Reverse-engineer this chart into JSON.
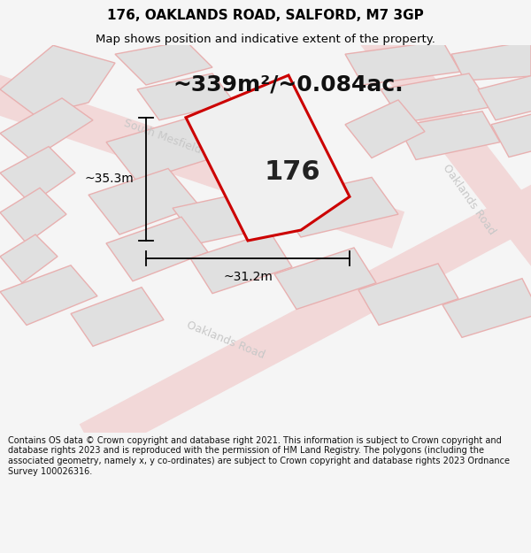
{
  "title": "176, OAKLANDS ROAD, SALFORD, M7 3GP",
  "subtitle": "Map shows position and indicative extent of the property.",
  "area_label": "~339m²/~0.084ac.",
  "number_label": "176",
  "dim_h": "~35.3m",
  "dim_w": "~31.2m",
  "footer": "Contains OS data © Crown copyright and database right 2021. This information is subject to Crown copyright and database rights 2023 and is reproduced with the permission of HM Land Registry. The polygons (including the associated geometry, namely x, y co-ordinates) are subject to Crown copyright and database rights 2023 Ordnance Survey 100026316.",
  "bg_color": "#f5f5f5",
  "map_bg": "#ffffff",
  "plot_edge": "#cc0000",
  "title_color": "#000000",
  "road_band_color": "#f2d8d8",
  "parcel_fill": "#e0e0e0",
  "parcel_edge": "#e8b0b0",
  "road_label_color": "#c8c8c8",
  "title_fontsize": 11,
  "subtitle_fontsize": 9.5,
  "area_fontsize": 18,
  "number_fontsize": 22,
  "dim_fontsize": 10,
  "footer_fontsize": 7
}
